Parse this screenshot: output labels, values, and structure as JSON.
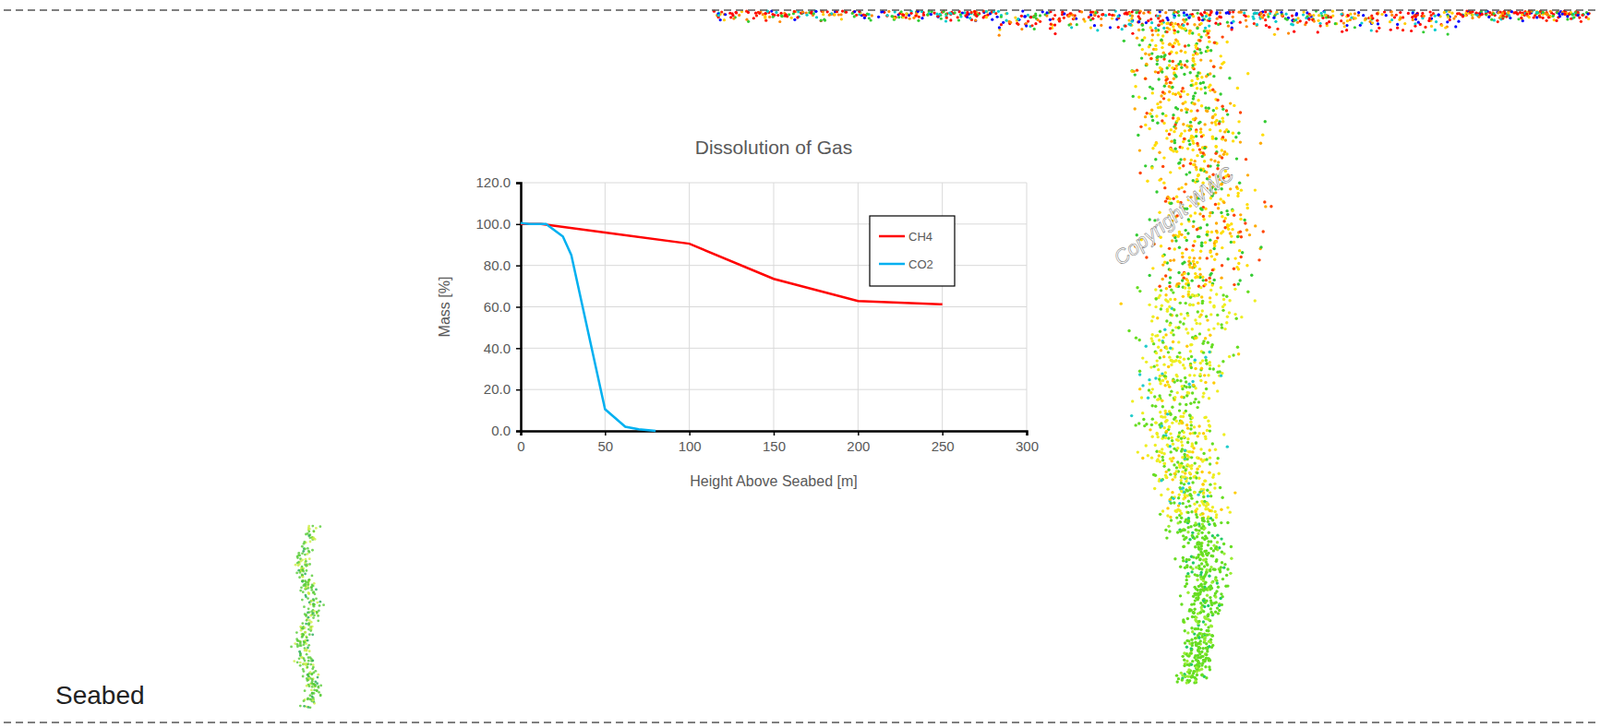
{
  "chart_data": {
    "type": "line",
    "title": "Dissolution of Gas",
    "x_label": "Height Above Seabed [m]",
    "y_label": "Mass [%]",
    "xlim": [
      0,
      300
    ],
    "ylim": [
      0,
      120
    ],
    "xticks": [
      0,
      50,
      100,
      150,
      200,
      250,
      300
    ],
    "yticks": [
      {
        "value": 0,
        "label": "0.0"
      },
      {
        "value": 20,
        "label": "20.0"
      },
      {
        "value": 40,
        "label": "40.0"
      },
      {
        "value": 60,
        "label": "60.0"
      },
      {
        "value": 80,
        "label": "80.0"
      },
      {
        "value": 100,
        "label": "100.0"
      },
      {
        "value": 120,
        "label": "120.0"
      }
    ],
    "grid": true,
    "legend": "top-right",
    "series": [
      {
        "name": "CH4",
        "color": "#ff0000",
        "x": [
          0,
          12,
          100,
          150,
          200,
          250
        ],
        "values": [
          100,
          100,
          90.5,
          73.5,
          62.8,
          61.2
        ]
      },
      {
        "name": "CO2",
        "color": "#00b0f0",
        "x": [
          0,
          5,
          15,
          25,
          30,
          50,
          62,
          70,
          80
        ],
        "values": [
          100.5,
          100,
          100,
          94,
          85,
          10.5,
          2,
          0.8,
          0
        ]
      }
    ]
  },
  "watermark": "Copyright WWC",
  "seabed_label": "Seabed"
}
